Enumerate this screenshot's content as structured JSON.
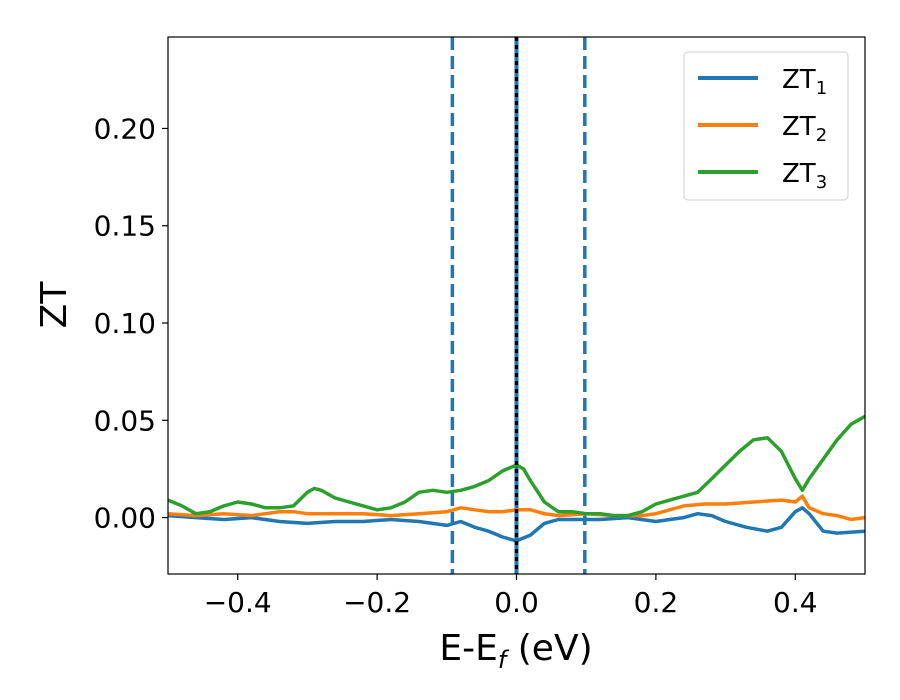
{
  "chart_data": {
    "type": "line",
    "xlabel": "E-E",
    "xlabel_sub": "f",
    "xlabel_unit": " (eV)",
    "ylabel": "ZT",
    "xlim": [
      -0.5,
      0.5
    ],
    "ylim": [
      -0.029,
      0.247
    ],
    "grid": false,
    "legend_position": "top-right",
    "x_ticks": [
      -0.4,
      -0.2,
      0.0,
      0.2,
      0.4
    ],
    "x_tick_labels": [
      "−0.4",
      "−0.2",
      "0.0",
      "0.2",
      "0.4"
    ],
    "y_ticks": [
      0.0,
      0.05,
      0.1,
      0.15,
      0.2
    ],
    "y_tick_labels": [
      "0.00",
      "0.05",
      "0.10",
      "0.15",
      "0.20"
    ],
    "vlines": [
      {
        "x": -0.092,
        "style": "dashed",
        "color": "#1f77b4"
      },
      {
        "x": 0.098,
        "style": "dashed",
        "color": "#1f77b4"
      },
      {
        "x": 0.0,
        "style": "solid",
        "color": "#1f77b4"
      },
      {
        "x": 0.0,
        "style": "dotted",
        "color": "#000000"
      }
    ],
    "series": [
      {
        "name": "ZT",
        "sub": "1",
        "color": "#1f77b4",
        "x": [
          -0.5,
          -0.46,
          -0.42,
          -0.38,
          -0.34,
          -0.3,
          -0.26,
          -0.22,
          -0.18,
          -0.14,
          -0.1,
          -0.08,
          -0.06,
          -0.04,
          -0.02,
          0.0,
          0.02,
          0.04,
          0.06,
          0.08,
          0.1,
          0.12,
          0.16,
          0.2,
          0.22,
          0.24,
          0.26,
          0.28,
          0.3,
          0.33,
          0.36,
          0.38,
          0.4,
          0.41,
          0.42,
          0.44,
          0.46,
          0.5
        ],
        "values": [
          0.001,
          0.0,
          -0.001,
          0.0,
          -0.002,
          -0.003,
          -0.002,
          -0.002,
          -0.001,
          -0.002,
          -0.004,
          -0.002,
          -0.005,
          -0.007,
          -0.01,
          -0.012,
          -0.009,
          -0.003,
          -0.001,
          -0.001,
          -0.001,
          -0.001,
          0.0,
          -0.002,
          -0.001,
          0.0,
          0.002,
          0.001,
          -0.002,
          -0.005,
          -0.007,
          -0.005,
          0.003,
          0.005,
          0.002,
          -0.007,
          -0.008,
          -0.007
        ]
      },
      {
        "name": "ZT",
        "sub": "2",
        "color": "#ff7f0e",
        "x": [
          -0.5,
          -0.46,
          -0.42,
          -0.38,
          -0.34,
          -0.32,
          -0.3,
          -0.26,
          -0.22,
          -0.18,
          -0.14,
          -0.1,
          -0.08,
          -0.06,
          -0.04,
          -0.02,
          0.0,
          0.02,
          0.04,
          0.06,
          0.1,
          0.14,
          0.18,
          0.2,
          0.24,
          0.27,
          0.3,
          0.34,
          0.38,
          0.4,
          0.41,
          0.42,
          0.44,
          0.46,
          0.48,
          0.5
        ],
        "values": [
          0.002,
          0.001,
          0.002,
          0.001,
          0.003,
          0.003,
          0.002,
          0.002,
          0.002,
          0.001,
          0.002,
          0.003,
          0.005,
          0.004,
          0.003,
          0.003,
          0.004,
          0.004,
          0.002,
          0.001,
          0.002,
          0.001,
          0.001,
          0.002,
          0.006,
          0.007,
          0.007,
          0.008,
          0.009,
          0.008,
          0.011,
          0.005,
          0.002,
          0.001,
          -0.001,
          0.0
        ]
      },
      {
        "name": "ZT",
        "sub": "3",
        "color": "#2ca02c",
        "x": [
          -0.5,
          -0.48,
          -0.46,
          -0.44,
          -0.42,
          -0.4,
          -0.38,
          -0.36,
          -0.34,
          -0.32,
          -0.3,
          -0.29,
          -0.28,
          -0.26,
          -0.24,
          -0.22,
          -0.2,
          -0.18,
          -0.16,
          -0.14,
          -0.12,
          -0.1,
          -0.08,
          -0.06,
          -0.04,
          -0.02,
          0.0,
          0.01,
          0.02,
          0.04,
          0.06,
          0.08,
          0.1,
          0.12,
          0.14,
          0.16,
          0.18,
          0.2,
          0.22,
          0.24,
          0.26,
          0.28,
          0.3,
          0.32,
          0.34,
          0.36,
          0.38,
          0.4,
          0.41,
          0.42,
          0.44,
          0.46,
          0.48,
          0.5
        ],
        "values": [
          0.009,
          0.006,
          0.002,
          0.003,
          0.006,
          0.008,
          0.007,
          0.005,
          0.005,
          0.006,
          0.013,
          0.015,
          0.014,
          0.01,
          0.008,
          0.006,
          0.004,
          0.005,
          0.008,
          0.013,
          0.014,
          0.013,
          0.014,
          0.016,
          0.019,
          0.024,
          0.027,
          0.025,
          0.019,
          0.008,
          0.003,
          0.003,
          0.002,
          0.002,
          0.001,
          0.001,
          0.003,
          0.007,
          0.009,
          0.011,
          0.013,
          0.02,
          0.027,
          0.034,
          0.04,
          0.041,
          0.034,
          0.02,
          0.014,
          0.02,
          0.03,
          0.04,
          0.048,
          0.052
        ]
      }
    ]
  }
}
